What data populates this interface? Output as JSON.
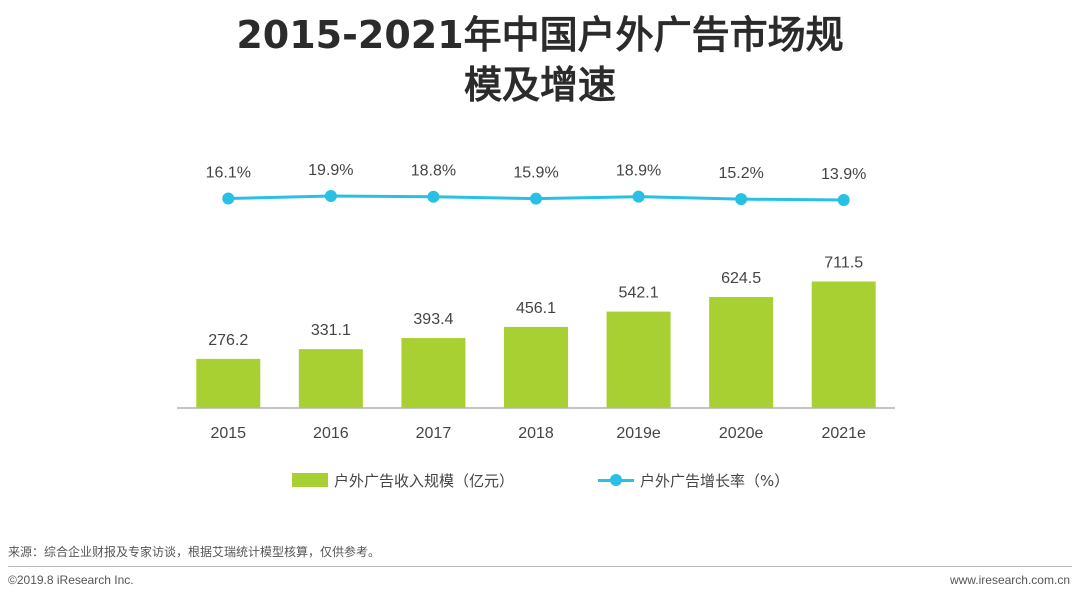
{
  "title_line1": "2015-2021年中国户外广告市场规",
  "title_line2": "模及增速",
  "colors": {
    "bar": "#a9d032",
    "line": "#29c0e6",
    "axis": "#888888",
    "text": "#444444"
  },
  "chart_data": {
    "type": "bar",
    "categories": [
      "2015",
      "2016",
      "2017",
      "2018",
      "2019e",
      "2020e",
      "2021e"
    ],
    "series": [
      {
        "name": "户外广告收入规模（亿元）",
        "kind": "bar",
        "values": [
          276.2,
          331.1,
          393.4,
          456.1,
          542.1,
          624.5,
          711.5
        ],
        "labels": [
          "276.2",
          "331.1",
          "393.4",
          "456.1",
          "542.1",
          "624.5",
          "711.5"
        ]
      },
      {
        "name": "户外广告增长率（%）",
        "kind": "line",
        "values": [
          16.1,
          19.9,
          18.8,
          15.9,
          18.9,
          15.2,
          13.9
        ],
        "labels": [
          "16.1%",
          "19.9%",
          "18.8%",
          "15.9%",
          "18.9%",
          "15.2%",
          "13.9%"
        ]
      }
    ],
    "ylim": [
      0,
      1000
    ]
  },
  "legend": {
    "bar_label": "户外广告收入规模（亿元）",
    "line_label": "户外广告增长率（%）"
  },
  "footer": {
    "source": "来源：综合企业财报及专家访谈，根据艾瑞统计模型核算，仅供参考。",
    "copyright": "©2019.8 iResearch Inc.",
    "website": "www.iresearch.com.cn"
  }
}
